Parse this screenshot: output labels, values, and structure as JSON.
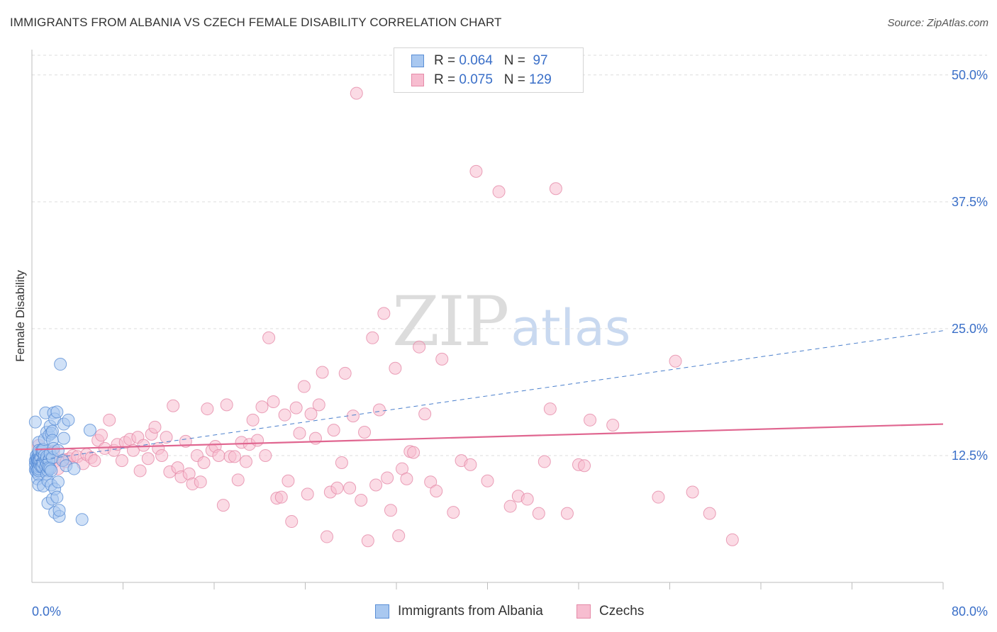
{
  "header": {
    "title": "IMMIGRANTS FROM ALBANIA VS CZECH FEMALE DISABILITY CORRELATION CHART",
    "source": "Source: ZipAtlas.com"
  },
  "watermark": {
    "zip": "ZIP",
    "atlas": "atlas"
  },
  "stats_legend": [
    {
      "r_label": "R =",
      "r_value": "0.064",
      "n_label": "N =",
      "n_value": "97"
    },
    {
      "r_label": "R =",
      "r_value": "0.075",
      "n_label": "N =",
      "n_value": "129"
    }
  ],
  "colors": {
    "blue_fill": "#a9c8f0",
    "blue_stroke": "#5b8fd6",
    "blue_line": "#4a7fcc",
    "pink_fill": "#f7bdd0",
    "pink_stroke": "#e58aa8",
    "pink_line": "#e06690",
    "tick_label": "#3a6fc8",
    "grid": "#dddddd"
  },
  "chart_data": {
    "type": "scatter",
    "title": "IMMIGRANTS FROM ALBANIA VS CZECH FEMALE DISABILITY CORRELATION CHART",
    "xlabel": "",
    "ylabel": "Female Disability",
    "xlim": [
      0,
      80
    ],
    "ylim": [
      0,
      52.5
    ],
    "x_tick_labels": [
      "0.0%",
      "80.0%"
    ],
    "y_ticks": [
      12.5,
      25.0,
      37.5,
      50.0
    ],
    "y_tick_labels": [
      "12.5%",
      "25.0%",
      "37.5%",
      "50.0%"
    ],
    "grid": "horizontal dashed",
    "legend_position": "bottom-center",
    "series": [
      {
        "name": "Immigrants from Albania",
        "r": 0.064,
        "n": 97,
        "trend": {
          "style": "dashed",
          "x": [
            0.3,
            80
          ],
          "y": [
            12.0,
            24.8
          ]
        },
        "points": [
          [
            0.3,
            11.1
          ],
          [
            0.3,
            11.6
          ],
          [
            0.3,
            12.0
          ],
          [
            0.3,
            15.8
          ],
          [
            0.4,
            11.2
          ],
          [
            0.4,
            12.2
          ],
          [
            0.4,
            10.9
          ],
          [
            0.4,
            12.5
          ],
          [
            0.4,
            11.9
          ],
          [
            0.4,
            12.5
          ],
          [
            0.5,
            12.2
          ],
          [
            0.5,
            11.9
          ],
          [
            0.5,
            11.6
          ],
          [
            0.5,
            10.2
          ],
          [
            0.5,
            12.1
          ],
          [
            0.5,
            12.0
          ],
          [
            0.5,
            11.1
          ],
          [
            0.5,
            12.1
          ],
          [
            0.5,
            12.3
          ],
          [
            0.6,
            13.8
          ],
          [
            0.6,
            12.6
          ],
          [
            0.6,
            10.6
          ],
          [
            0.6,
            11.5
          ],
          [
            0.6,
            11.0
          ],
          [
            0.6,
            12.5
          ],
          [
            0.6,
            12.8
          ],
          [
            0.6,
            11.4
          ],
          [
            0.6,
            12.2
          ],
          [
            0.6,
            11.7
          ],
          [
            0.6,
            12.0
          ],
          [
            0.6,
            13.0
          ],
          [
            0.6,
            11.2
          ],
          [
            0.6,
            12.0
          ],
          [
            0.6,
            9.6
          ],
          [
            0.7,
            11.6
          ],
          [
            0.7,
            12.1
          ],
          [
            0.7,
            12.2
          ],
          [
            0.7,
            12.0
          ],
          [
            0.8,
            12.3
          ],
          [
            0.8,
            11.4
          ],
          [
            0.9,
            11.5
          ],
          [
            0.9,
            12.8
          ],
          [
            0.9,
            12.9
          ],
          [
            0.9,
            12.9
          ],
          [
            0.9,
            13.1
          ],
          [
            0.9,
            11.8
          ],
          [
            0.9,
            11.4
          ],
          [
            1.0,
            9.5
          ],
          [
            1.0,
            11.8
          ],
          [
            1.0,
            13.1
          ],
          [
            1.1,
            12.5
          ],
          [
            1.1,
            14.1
          ],
          [
            1.2,
            12.0
          ],
          [
            1.2,
            16.7
          ],
          [
            1.2,
            11.4
          ],
          [
            1.3,
            14.8
          ],
          [
            1.3,
            11.7
          ],
          [
            1.3,
            10.7
          ],
          [
            1.3,
            12.2
          ],
          [
            1.3,
            12.4
          ],
          [
            1.4,
            11.0
          ],
          [
            1.4,
            10.0
          ],
          [
            1.4,
            7.8
          ],
          [
            1.4,
            11.4
          ],
          [
            1.5,
            12.1
          ],
          [
            1.5,
            12.0
          ],
          [
            1.5,
            14.5
          ],
          [
            1.5,
            11.3
          ],
          [
            1.6,
            15.4
          ],
          [
            1.6,
            11.2
          ],
          [
            1.6,
            12.7
          ],
          [
            1.7,
            9.6
          ],
          [
            1.7,
            11.0
          ],
          [
            1.7,
            14.7
          ],
          [
            1.8,
            14.9
          ],
          [
            1.8,
            8.2
          ],
          [
            1.8,
            12.3
          ],
          [
            1.8,
            14.0
          ],
          [
            1.9,
            13.2
          ],
          [
            1.9,
            16.7
          ],
          [
            2.0,
            9.2
          ],
          [
            2.0,
            16.1
          ],
          [
            2.0,
            6.9
          ],
          [
            2.2,
            16.8
          ],
          [
            2.2,
            8.4
          ],
          [
            2.3,
            9.9
          ],
          [
            2.3,
            13.0
          ],
          [
            2.4,
            6.5
          ],
          [
            2.4,
            7.1
          ],
          [
            2.5,
            21.5
          ],
          [
            2.7,
            12.0
          ],
          [
            2.8,
            15.6
          ],
          [
            2.8,
            14.2
          ],
          [
            3.0,
            11.5
          ],
          [
            3.2,
            16.0
          ],
          [
            3.7,
            11.2
          ],
          [
            4.4,
            6.2
          ],
          [
            5.1,
            15.0
          ]
        ]
      },
      {
        "name": "Czechs",
        "r": 0.075,
        "n": 129,
        "trend": {
          "style": "solid",
          "x": [
            0.3,
            80
          ],
          "y": [
            13.1,
            15.6
          ]
        },
        "points": [
          [
            0.6,
            13.5
          ],
          [
            0.8,
            12.0
          ],
          [
            1.0,
            12.6
          ],
          [
            1.1,
            11.8
          ],
          [
            1.3,
            11.5
          ],
          [
            1.5,
            12.0
          ],
          [
            1.9,
            12.9
          ],
          [
            2.0,
            11.9
          ],
          [
            2.3,
            11.2
          ],
          [
            2.8,
            12.1
          ],
          [
            3.0,
            11.9
          ],
          [
            3.3,
            12.2
          ],
          [
            3.6,
            12.5
          ],
          [
            4.0,
            12.4
          ],
          [
            4.5,
            11.7
          ],
          [
            4.8,
            12.6
          ],
          [
            5.2,
            12.3
          ],
          [
            5.5,
            12.0
          ],
          [
            5.8,
            14.0
          ],
          [
            6.1,
            14.5
          ],
          [
            6.4,
            13.2
          ],
          [
            6.8,
            16.0
          ],
          [
            7.2,
            13.0
          ],
          [
            7.5,
            13.6
          ],
          [
            7.9,
            12.0
          ],
          [
            8.2,
            13.8
          ],
          [
            8.6,
            14.1
          ],
          [
            8.9,
            13.0
          ],
          [
            9.3,
            14.3
          ],
          [
            9.5,
            11.0
          ],
          [
            9.8,
            13.5
          ],
          [
            10.2,
            12.2
          ],
          [
            10.5,
            14.6
          ],
          [
            10.8,
            15.3
          ],
          [
            11.1,
            13.2
          ],
          [
            11.4,
            12.5
          ],
          [
            11.8,
            14.3
          ],
          [
            12.1,
            10.9
          ],
          [
            12.4,
            17.4
          ],
          [
            12.8,
            11.3
          ],
          [
            13.1,
            10.4
          ],
          [
            13.5,
            13.9
          ],
          [
            13.8,
            10.7
          ],
          [
            14.1,
            9.7
          ],
          [
            14.5,
            12.5
          ],
          [
            14.8,
            9.9
          ],
          [
            15.1,
            11.8
          ],
          [
            15.4,
            17.1
          ],
          [
            15.8,
            13.0
          ],
          [
            16.1,
            13.4
          ],
          [
            16.4,
            12.5
          ],
          [
            16.8,
            7.6
          ],
          [
            17.1,
            17.5
          ],
          [
            17.4,
            12.4
          ],
          [
            17.8,
            12.4
          ],
          [
            18.1,
            10.1
          ],
          [
            18.4,
            13.8
          ],
          [
            18.8,
            11.9
          ],
          [
            19.1,
            13.6
          ],
          [
            19.4,
            16.0
          ],
          [
            19.8,
            14.0
          ],
          [
            20.2,
            17.3
          ],
          [
            20.5,
            12.5
          ],
          [
            20.8,
            24.1
          ],
          [
            21.2,
            17.8
          ],
          [
            21.5,
            8.3
          ],
          [
            21.9,
            8.4
          ],
          [
            22.2,
            16.5
          ],
          [
            22.5,
            10.0
          ],
          [
            22.8,
            6.0
          ],
          [
            23.2,
            17.2
          ],
          [
            23.5,
            14.7
          ],
          [
            23.9,
            19.3
          ],
          [
            24.2,
            8.7
          ],
          [
            24.5,
            16.6
          ],
          [
            24.9,
            14.2
          ],
          [
            25.2,
            17.5
          ],
          [
            25.5,
            20.7
          ],
          [
            25.9,
            4.5
          ],
          [
            26.2,
            8.9
          ],
          [
            26.5,
            15.0
          ],
          [
            26.8,
            9.3
          ],
          [
            27.2,
            11.8
          ],
          [
            27.5,
            20.6
          ],
          [
            27.9,
            9.3
          ],
          [
            28.2,
            16.4
          ],
          [
            28.5,
            48.2
          ],
          [
            28.9,
            8.1
          ],
          [
            29.2,
            14.8
          ],
          [
            29.5,
            4.1
          ],
          [
            29.9,
            24.1
          ],
          [
            30.2,
            9.6
          ],
          [
            30.5,
            17.0
          ],
          [
            30.9,
            26.5
          ],
          [
            31.2,
            10.3
          ],
          [
            31.5,
            7.1
          ],
          [
            31.9,
            21.1
          ],
          [
            32.2,
            4.6
          ],
          [
            32.5,
            11.2
          ],
          [
            32.9,
            10.2
          ],
          [
            33.2,
            12.9
          ],
          [
            33.5,
            12.8
          ],
          [
            34.0,
            23.2
          ],
          [
            34.5,
            16.6
          ],
          [
            35.0,
            9.9
          ],
          [
            35.5,
            9.0
          ],
          [
            36.0,
            22.0
          ],
          [
            37.0,
            6.9
          ],
          [
            37.7,
            12.0
          ],
          [
            38.5,
            11.6
          ],
          [
            39.0,
            40.5
          ],
          [
            40.0,
            10.0
          ],
          [
            41.0,
            38.5
          ],
          [
            42.0,
            7.5
          ],
          [
            42.7,
            8.5
          ],
          [
            43.5,
            8.2
          ],
          [
            44.5,
            6.8
          ],
          [
            45.0,
            11.9
          ],
          [
            45.5,
            17.1
          ],
          [
            46.0,
            38.8
          ],
          [
            47.0,
            6.8
          ],
          [
            48.0,
            11.6
          ],
          [
            48.5,
            11.5
          ],
          [
            49.0,
            16.0
          ],
          [
            51.0,
            15.5
          ],
          [
            55.0,
            8.4
          ],
          [
            56.5,
            21.8
          ],
          [
            58.0,
            8.9
          ],
          [
            59.5,
            6.8
          ],
          [
            61.5,
            4.2
          ]
        ]
      }
    ]
  }
}
